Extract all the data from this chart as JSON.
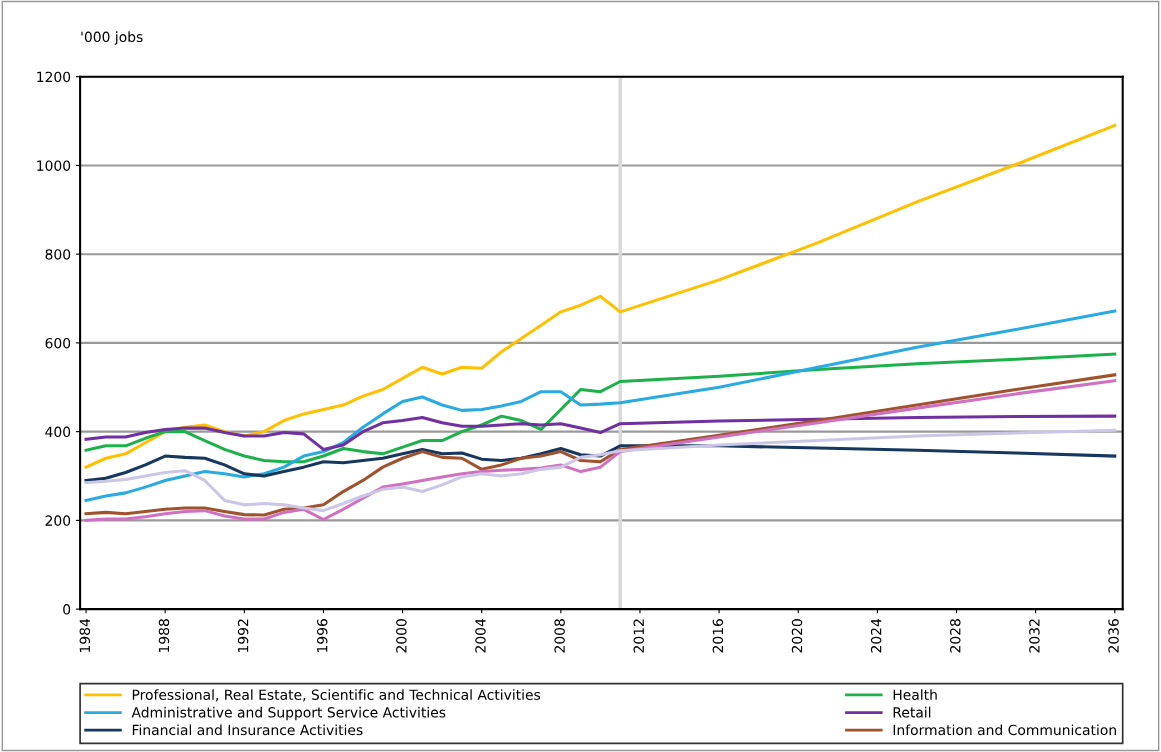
{
  "chart_data": {
    "type": "line",
    "ylabel": "'000 jobs",
    "xlim": [
      1983.7,
      2036.4
    ],
    "xticks": [
      1984,
      1988,
      1992,
      1996,
      2000,
      2004,
      2008,
      2012,
      2016,
      2020,
      2024,
      2028,
      2032,
      2036
    ],
    "ylim": [
      0,
      1200
    ],
    "yticks": [
      0,
      200,
      400,
      600,
      800,
      1000,
      1200
    ],
    "grid": "y",
    "legend": "bottom",
    "line_style": "solid",
    "marker": "none",
    "ref_lines": [
      {
        "axis": "x",
        "value": 2011,
        "color": "#d9d9d9"
      }
    ],
    "series": [
      {
        "name": "Professional, Real Estate, Scientific and Technical Activities",
        "color": "#ffc000",
        "x": [
          1984,
          1985,
          1986,
          1987,
          1988,
          1989,
          1990,
          1991,
          1992,
          1993,
          1994,
          1995,
          1996,
          1997,
          1998,
          1999,
          2000,
          2001,
          2002,
          2003,
          2004,
          2005,
          2006,
          2007,
          2008,
          2009,
          2010,
          2011,
          2016,
          2021,
          2026,
          2031,
          2036
        ],
        "values": [
          320,
          340,
          350,
          375,
          400,
          410,
          415,
          400,
          390,
          400,
          425,
          440,
          450,
          460,
          480,
          495,
          520,
          545,
          530,
          545,
          543,
          580,
          610,
          640,
          670,
          685,
          705,
          670,
          742,
          826,
          918,
          1002,
          1090
        ]
      },
      {
        "name": "Health",
        "color": "#1db14b",
        "x": [
          1984,
          1985,
          1986,
          1987,
          1988,
          1989,
          1990,
          1991,
          1992,
          1993,
          1994,
          1995,
          1996,
          1997,
          1998,
          1999,
          2000,
          2001,
          2002,
          2003,
          2004,
          2005,
          2006,
          2007,
          2008,
          2009,
          2010,
          2011,
          2016,
          2021,
          2026,
          2031,
          2036
        ],
        "values": [
          358,
          368,
          368,
          385,
          400,
          400,
          380,
          360,
          345,
          335,
          332,
          332,
          345,
          362,
          355,
          350,
          365,
          380,
          380,
          400,
          415,
          435,
          425,
          405,
          450,
          495,
          490,
          513,
          525,
          540,
          553,
          563,
          575
        ]
      },
      {
        "name": "Administrative and Support Service Activities",
        "color": "#29abe2",
        "x": [
          1984,
          1985,
          1986,
          1987,
          1988,
          1989,
          1990,
          1991,
          1992,
          1993,
          1994,
          1995,
          1996,
          1997,
          1998,
          1999,
          2000,
          2001,
          2002,
          2003,
          2004,
          2005,
          2006,
          2007,
          2008,
          2009,
          2010,
          2011,
          2016,
          2021,
          2026,
          2031,
          2036
        ],
        "values": [
          245,
          255,
          262,
          275,
          290,
          300,
          310,
          305,
          298,
          305,
          320,
          345,
          355,
          375,
          410,
          440,
          468,
          478,
          460,
          448,
          450,
          458,
          468,
          490,
          490,
          460,
          462,
          465,
          500,
          545,
          590,
          630,
          672
        ]
      },
      {
        "name": "Retail",
        "color": "#7030a0",
        "x": [
          1984,
          1985,
          1986,
          1987,
          1988,
          1989,
          1990,
          1991,
          1992,
          1993,
          1994,
          1995,
          1996,
          1997,
          1998,
          1999,
          2000,
          2001,
          2002,
          2003,
          2004,
          2005,
          2006,
          2007,
          2008,
          2009,
          2010,
          2011,
          2016,
          2021,
          2026,
          2031,
          2036
        ],
        "values": [
          383,
          388,
          388,
          398,
          405,
          408,
          408,
          398,
          390,
          390,
          398,
          395,
          360,
          370,
          400,
          420,
          425,
          432,
          420,
          412,
          412,
          415,
          418,
          415,
          418,
          408,
          398,
          418,
          424,
          428,
          432,
          434,
          435
        ]
      },
      {
        "name": "Financial and Insurance Activities",
        "color": "#17375e",
        "x": [
          1984,
          1985,
          1986,
          1987,
          1988,
          1989,
          1990,
          1991,
          1992,
          1993,
          1994,
          1995,
          1996,
          1997,
          1998,
          1999,
          2000,
          2001,
          2002,
          2003,
          2004,
          2005,
          2006,
          2007,
          2008,
          2009,
          2010,
          2011,
          2016,
          2021,
          2026,
          2031,
          2036
        ],
        "values": [
          290,
          295,
          308,
          325,
          345,
          342,
          340,
          325,
          305,
          300,
          310,
          320,
          332,
          330,
          335,
          340,
          350,
          360,
          350,
          352,
          338,
          335,
          340,
          350,
          362,
          348,
          345,
          368,
          368,
          363,
          358,
          352,
          345
        ]
      },
      {
        "name": "Information and Communication",
        "color": "#a0522d",
        "x": [
          1984,
          1985,
          1986,
          1987,
          1988,
          1989,
          1990,
          1991,
          1992,
          1993,
          1994,
          1995,
          1996,
          1997,
          1998,
          1999,
          2000,
          2001,
          2002,
          2003,
          2004,
          2005,
          2006,
          2007,
          2008,
          2009,
          2010,
          2011,
          2016,
          2021,
          2026,
          2031,
          2036
        ],
        "values": [
          215,
          218,
          215,
          220,
          225,
          228,
          228,
          220,
          213,
          212,
          225,
          228,
          235,
          265,
          290,
          320,
          340,
          355,
          342,
          340,
          315,
          325,
          340,
          345,
          355,
          335,
          332,
          360,
          392,
          425,
          460,
          495,
          528
        ]
      },
      {
        "color": "#d070c0",
        "x": [
          1984,
          1985,
          1986,
          1987,
          1988,
          1989,
          1990,
          1991,
          1992,
          1993,
          1994,
          1995,
          1996,
          1997,
          1998,
          1999,
          2000,
          2001,
          2002,
          2003,
          2004,
          2005,
          2006,
          2007,
          2008,
          2009,
          2010,
          2011,
          2016,
          2021,
          2026,
          2031,
          2036
        ],
        "values": [
          200,
          203,
          203,
          208,
          215,
          220,
          222,
          210,
          203,
          203,
          218,
          225,
          202,
          225,
          250,
          275,
          282,
          290,
          298,
          305,
          310,
          313,
          315,
          318,
          325,
          310,
          320,
          355,
          388,
          420,
          453,
          485,
          515
        ]
      },
      {
        "color": "#ccc6e6",
        "x": [
          1984,
          1985,
          1986,
          1987,
          1988,
          1989,
          1990,
          1991,
          1992,
          1993,
          1994,
          1995,
          1996,
          1997,
          1998,
          1999,
          2000,
          2001,
          2002,
          2003,
          2004,
          2005,
          2006,
          2007,
          2008,
          2009,
          2010,
          2011,
          2016,
          2021,
          2026,
          2031,
          2036
        ],
        "values": [
          285,
          288,
          292,
          300,
          308,
          312,
          290,
          245,
          235,
          238,
          235,
          228,
          222,
          238,
          255,
          270,
          275,
          265,
          280,
          298,
          305,
          300,
          305,
          315,
          320,
          342,
          348,
          357,
          370,
          380,
          390,
          397,
          403
        ]
      }
    ]
  }
}
